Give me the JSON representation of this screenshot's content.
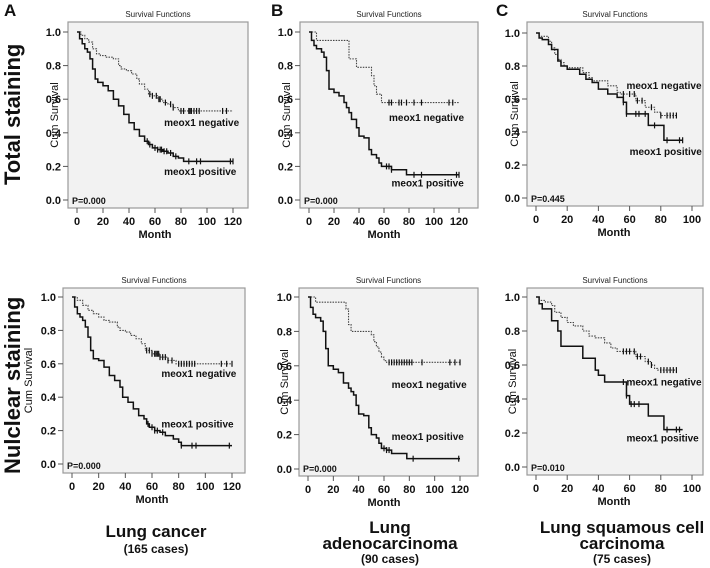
{
  "figure": {
    "row_labels": [
      "Total staining",
      "Nulclear staining"
    ],
    "column_titles": [
      {
        "title_lines": [
          "Lung cancer"
        ],
        "cases": "(165 cases)"
      },
      {
        "title_lines": [
          "Lung",
          "adenocarcinoma"
        ],
        "cases": "(90 cases)"
      },
      {
        "title_lines": [
          "Lung squamous cell",
          "carcinoma"
        ],
        "cases": "(75 cases)"
      }
    ]
  },
  "chart_data": [
    {
      "id": "A-total",
      "panel_letter": "A",
      "type": "line",
      "title": "Survival Functions",
      "xlabel": "Month",
      "ylabel": "Cum Survival",
      "xlim": [
        0,
        120
      ],
      "ylim": [
        0,
        1.0
      ],
      "xticks": [
        0,
        20,
        40,
        60,
        80,
        100,
        120
      ],
      "yticks": [
        "0.0",
        "0.2",
        "0.4",
        "0.6",
        "0.8",
        "1.0"
      ],
      "p_value": "P=0.000",
      "series": [
        {
          "name": "meox1 negative",
          "style": "dotted",
          "x": [
            0,
            3,
            6,
            9,
            12,
            15,
            18,
            22,
            28,
            32,
            34,
            38,
            42,
            46,
            48,
            52,
            55,
            58,
            62,
            66,
            70,
            74,
            78,
            80,
            120
          ],
          "y": [
            1.0,
            0.98,
            0.96,
            0.94,
            0.9,
            0.87,
            0.86,
            0.85,
            0.84,
            0.8,
            0.78,
            0.77,
            0.75,
            0.72,
            0.69,
            0.66,
            0.63,
            0.62,
            0.6,
            0.58,
            0.57,
            0.55,
            0.53,
            0.53,
            0.53
          ],
          "censor_x": [
            56,
            58,
            61,
            63,
            64,
            68,
            72,
            74,
            80,
            82,
            86,
            87,
            88,
            90,
            92,
            94,
            112,
            115
          ]
        },
        {
          "name": "meox1 positive",
          "style": "solid",
          "x": [
            0,
            2,
            4,
            6,
            8,
            10,
            12,
            14,
            16,
            20,
            24,
            28,
            32,
            36,
            40,
            44,
            48,
            52,
            55,
            58,
            62,
            66,
            70,
            74,
            78,
            82,
            84,
            120
          ],
          "y": [
            1.0,
            0.96,
            0.93,
            0.9,
            0.88,
            0.84,
            0.78,
            0.72,
            0.7,
            0.68,
            0.65,
            0.6,
            0.56,
            0.51,
            0.46,
            0.42,
            0.38,
            0.35,
            0.33,
            0.31,
            0.3,
            0.29,
            0.28,
            0.26,
            0.25,
            0.23,
            0.23,
            0.23
          ],
          "censor_x": [
            54,
            56,
            60,
            62,
            64,
            65,
            67,
            69,
            72,
            76,
            86,
            92,
            95,
            118,
            120
          ]
        }
      ],
      "annotations": [
        {
          "text": "meox1 negative",
          "x": 67,
          "y": 0.44
        },
        {
          "text": "meox1 positive",
          "x": 67,
          "y": 0.15
        }
      ]
    },
    {
      "id": "B-total",
      "panel_letter": "B",
      "type": "line",
      "title": "Survival Functions",
      "xlabel": "Month",
      "ylabel": "Cum Survival",
      "xlim": [
        0,
        120
      ],
      "ylim": [
        0,
        1.0
      ],
      "xticks": [
        0,
        20,
        40,
        60,
        80,
        100,
        120
      ],
      "yticks": [
        "0.0",
        "0.2",
        "0.4",
        "0.6",
        "0.8",
        "1.0"
      ],
      "p_value": "P=0.000",
      "series": [
        {
          "name": "meox1 negative",
          "style": "dotted",
          "x": [
            0,
            6,
            32,
            38,
            50,
            52,
            54,
            58,
            62,
            120
          ],
          "y": [
            1.0,
            0.95,
            0.84,
            0.79,
            0.74,
            0.68,
            0.63,
            0.58,
            0.58,
            0.58
          ],
          "censor_x": [
            64,
            66,
            72,
            74,
            78,
            84,
            90,
            112,
            115
          ]
        },
        {
          "name": "meox1 positive",
          "style": "solid",
          "x": [
            0,
            2,
            4,
            6,
            10,
            12,
            14,
            16,
            20,
            24,
            28,
            30,
            32,
            34,
            38,
            40,
            44,
            48,
            50,
            54,
            56,
            58,
            62,
            66,
            78,
            80,
            120
          ],
          "y": [
            1.0,
            0.95,
            0.92,
            0.9,
            0.88,
            0.85,
            0.77,
            0.66,
            0.64,
            0.62,
            0.58,
            0.55,
            0.52,
            0.48,
            0.43,
            0.38,
            0.37,
            0.3,
            0.27,
            0.25,
            0.22,
            0.2,
            0.2,
            0.18,
            0.15,
            0.15,
            0.15
          ],
          "censor_x": [
            62,
            64,
            66,
            84,
            90,
            118,
            120
          ]
        }
      ],
      "annotations": [
        {
          "text": "meox1 negative",
          "x": 64,
          "y": 0.47
        },
        {
          "text": "meox1 positive",
          "x": 66,
          "y": 0.08
        }
      ]
    },
    {
      "id": "C-total",
      "panel_letter": "C",
      "type": "line",
      "title": "Survival Functions",
      "xlabel": "Month",
      "ylabel": "Cum Survival",
      "xlim": [
        0,
        100
      ],
      "ylim": [
        0,
        1.0
      ],
      "xticks": [
        0,
        20,
        40,
        60,
        80,
        100
      ],
      "yticks": [
        "0.0",
        "0.2",
        "0.4",
        "0.6",
        "0.8",
        "1.0"
      ],
      "p_value": "P=0.445",
      "series": [
        {
          "name": "meox1 negative",
          "style": "dotted",
          "x": [
            0,
            2,
            8,
            10,
            12,
            14,
            16,
            18,
            20,
            30,
            34,
            36,
            46,
            52,
            54,
            58,
            64,
            70,
            72,
            76,
            80,
            90
          ],
          "y": [
            1.0,
            0.98,
            0.95,
            0.91,
            0.87,
            0.84,
            0.82,
            0.8,
            0.79,
            0.76,
            0.73,
            0.71,
            0.68,
            0.64,
            0.63,
            0.63,
            0.59,
            0.55,
            0.55,
            0.52,
            0.5,
            0.5
          ],
          "censor_x": [
            56,
            60,
            63,
            65,
            68,
            74,
            80,
            84,
            86,
            88,
            90
          ]
        },
        {
          "name": "meox1 positive",
          "style": "solid",
          "x": [
            0,
            2,
            4,
            8,
            10,
            14,
            16,
            20,
            28,
            32,
            36,
            40,
            46,
            52,
            56,
            58,
            60,
            72,
            76,
            82,
            94
          ],
          "y": [
            1.0,
            0.97,
            0.96,
            0.93,
            0.9,
            0.83,
            0.8,
            0.78,
            0.75,
            0.72,
            0.7,
            0.66,
            0.63,
            0.61,
            0.58,
            0.51,
            0.51,
            0.44,
            0.44,
            0.35,
            0.35
          ],
          "censor_x": [
            56,
            58,
            64,
            66,
            70,
            76,
            84,
            92,
            94
          ]
        }
      ],
      "annotations": [
        {
          "text": "meox1 negative",
          "x": 58,
          "y": 0.66
        },
        {
          "text": "meox1 positive",
          "x": 60,
          "y": 0.26
        }
      ]
    },
    {
      "id": "A-nuclear",
      "panel_letter": "",
      "type": "line",
      "title": "Survival Functions",
      "xlabel": "Month",
      "ylabel": "Cum Survival",
      "xlim": [
        0,
        120
      ],
      "ylim": [
        0,
        1.0
      ],
      "xticks": [
        0,
        20,
        40,
        60,
        80,
        100,
        120
      ],
      "yticks": [
        "0.0",
        "0.2",
        "0.4",
        "0.6",
        "0.8",
        "1.0"
      ],
      "p_value": "P=0.000",
      "series": [
        {
          "name": "meox1 negative",
          "style": "dotted",
          "x": [
            0,
            4,
            8,
            12,
            16,
            20,
            24,
            28,
            32,
            34,
            36,
            40,
            44,
            48,
            52,
            55,
            60,
            66,
            72,
            78,
            120
          ],
          "y": [
            1.0,
            0.98,
            0.95,
            0.92,
            0.9,
            0.88,
            0.86,
            0.85,
            0.85,
            0.82,
            0.8,
            0.79,
            0.77,
            0.75,
            0.72,
            0.68,
            0.66,
            0.64,
            0.62,
            0.6,
            0.6
          ],
          "censor_x": [
            56,
            58,
            60,
            62,
            63,
            64,
            65,
            66,
            68,
            70,
            72,
            75,
            80,
            82,
            84,
            86,
            88,
            90,
            92,
            112,
            116,
            120
          ]
        },
        {
          "name": "meox1 positive",
          "style": "solid",
          "x": [
            0,
            2,
            4,
            6,
            8,
            10,
            12,
            14,
            16,
            20,
            24,
            28,
            32,
            36,
            38,
            42,
            46,
            50,
            54,
            56,
            58,
            62,
            66,
            70,
            76,
            80,
            82,
            120
          ],
          "y": [
            1.0,
            0.94,
            0.9,
            0.88,
            0.86,
            0.82,
            0.76,
            0.68,
            0.63,
            0.62,
            0.58,
            0.53,
            0.5,
            0.46,
            0.4,
            0.37,
            0.33,
            0.29,
            0.27,
            0.24,
            0.22,
            0.2,
            0.19,
            0.17,
            0.15,
            0.13,
            0.11,
            0.11
          ],
          "censor_x": [
            57,
            60,
            62,
            64,
            68,
            82,
            90,
            93,
            118
          ]
        }
      ],
      "annotations": [
        {
          "text": "meox1 negative",
          "x": 67,
          "y": 0.52
        },
        {
          "text": "meox1 positive",
          "x": 67,
          "y": 0.22
        }
      ]
    },
    {
      "id": "B-nuclear",
      "panel_letter": "",
      "type": "line",
      "title": "Survival Functions",
      "xlabel": "Month",
      "ylabel": "Cum Survival",
      "xlim": [
        0,
        120
      ],
      "ylim": [
        0,
        1.0
      ],
      "xticks": [
        0,
        20,
        40,
        60,
        80,
        100,
        120
      ],
      "yticks": [
        "0.0",
        "0.2",
        "0.4",
        "0.6",
        "0.8",
        "1.0"
      ],
      "p_value": "P=0.000",
      "series": [
        {
          "name": "meox1 negative",
          "style": "dotted",
          "x": [
            0,
            6,
            30,
            32,
            34,
            40,
            50,
            52,
            54,
            56,
            58,
            60,
            62,
            120
          ],
          "y": [
            1.0,
            0.97,
            0.93,
            0.84,
            0.8,
            0.8,
            0.78,
            0.74,
            0.71,
            0.68,
            0.65,
            0.63,
            0.62,
            0.62
          ],
          "censor_x": [
            64,
            66,
            68,
            70,
            72,
            74,
            76,
            78,
            80,
            82,
            90,
            112,
            116,
            120
          ]
        },
        {
          "name": "meox1 positive",
          "style": "solid",
          "x": [
            0,
            2,
            4,
            6,
            10,
            12,
            14,
            16,
            20,
            24,
            28,
            32,
            34,
            36,
            38,
            40,
            44,
            48,
            50,
            54,
            56,
            58,
            62,
            66,
            78,
            120
          ],
          "y": [
            1.0,
            0.94,
            0.9,
            0.88,
            0.86,
            0.8,
            0.7,
            0.6,
            0.58,
            0.56,
            0.5,
            0.47,
            0.45,
            0.43,
            0.37,
            0.32,
            0.31,
            0.24,
            0.2,
            0.18,
            0.15,
            0.12,
            0.11,
            0.09,
            0.06,
            0.06
          ],
          "censor_x": [
            60,
            62,
            64,
            83,
            119
          ]
        }
      ],
      "annotations": [
        {
          "text": "meox1 negative",
          "x": 66,
          "y": 0.47
        },
        {
          "text": "meox1 positive",
          "x": 66,
          "y": 0.17
        }
      ]
    },
    {
      "id": "C-nuclear",
      "panel_letter": "",
      "type": "line",
      "title": "Survival Functions",
      "xlabel": "Month",
      "ylabel": "Cum Survival",
      "xlim": [
        0,
        100
      ],
      "ylim": [
        0,
        1.0
      ],
      "xticks": [
        0,
        20,
        40,
        60,
        80,
        100
      ],
      "yticks": [
        "0.0",
        "0.2",
        "0.4",
        "0.6",
        "0.8",
        "1.0"
      ],
      "p_value": "P=0.010",
      "series": [
        {
          "name": "meox1 negative",
          "style": "dotted",
          "x": [
            0,
            2,
            6,
            10,
            12,
            16,
            20,
            24,
            30,
            34,
            38,
            44,
            48,
            52,
            56,
            58,
            64,
            70,
            74,
            76,
            78,
            90
          ],
          "y": [
            1.0,
            0.98,
            0.97,
            0.95,
            0.91,
            0.88,
            0.85,
            0.83,
            0.8,
            0.77,
            0.76,
            0.73,
            0.7,
            0.68,
            0.68,
            0.68,
            0.65,
            0.62,
            0.6,
            0.58,
            0.57,
            0.57
          ],
          "censor_x": [
            56,
            58,
            60,
            63,
            65,
            67,
            72,
            74,
            80,
            82,
            84,
            86,
            88,
            90
          ]
        },
        {
          "name": "meox1 positive",
          "style": "solid",
          "x": [
            0,
            2,
            4,
            8,
            10,
            14,
            16,
            20,
            28,
            30,
            38,
            40,
            44,
            52,
            56,
            58,
            60,
            72,
            76,
            82,
            94
          ],
          "y": [
            1.0,
            0.96,
            0.93,
            0.93,
            0.86,
            0.8,
            0.71,
            0.71,
            0.71,
            0.64,
            0.57,
            0.54,
            0.5,
            0.5,
            0.5,
            0.42,
            0.37,
            0.3,
            0.3,
            0.22,
            0.22
          ],
          "censor_x": [
            56,
            58,
            61,
            63,
            66,
            84,
            90,
            92
          ]
        }
      ],
      "annotations": [
        {
          "text": "meox1 negative",
          "x": 58,
          "y": 0.48
        },
        {
          "text": "meox1 positive",
          "x": 58,
          "y": 0.15
        }
      ]
    }
  ]
}
